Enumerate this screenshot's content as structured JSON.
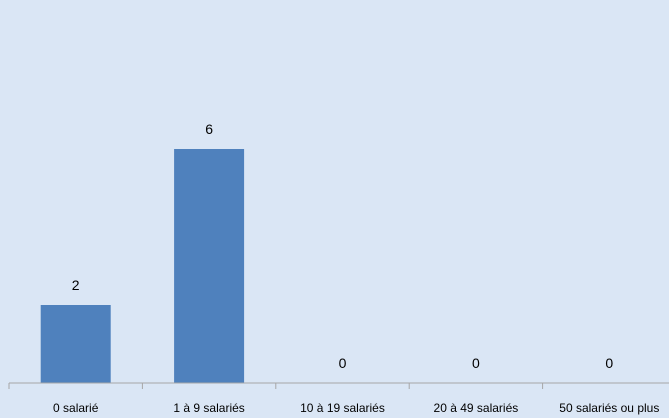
{
  "chart_data": {
    "type": "bar",
    "categories": [
      "0 salarié",
      "1 à 9 salariés",
      "10 à 19 salariés",
      "20 à 49 salariés",
      "50 salariés ou plus"
    ],
    "values": [
      2,
      6,
      0,
      0,
      0
    ],
    "data_labels": [
      "2",
      "6",
      "0",
      "0",
      "0"
    ],
    "title": "",
    "xlabel": "",
    "ylabel": "",
    "ylim": [
      0,
      8
    ],
    "grid": false,
    "legend": "none",
    "colors": {
      "bar": "#4f81bd",
      "background": "#dae6f5",
      "axis": "#a6a6a6"
    }
  }
}
